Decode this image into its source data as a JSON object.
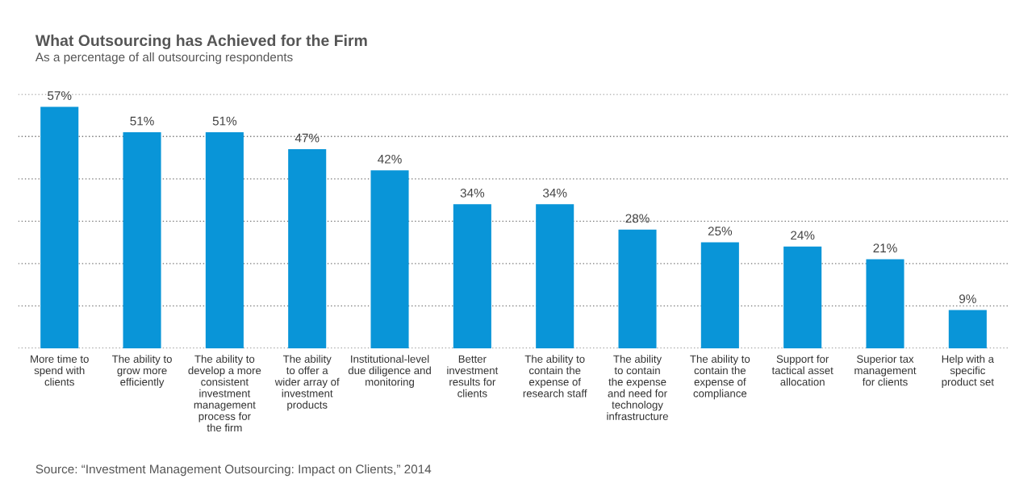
{
  "chart_data": {
    "type": "bar",
    "title": "What Outsourcing has Achieved for the Firm",
    "subtitle": "As a percentage of all outsourcing respondents",
    "categories": [
      "More time to\nspend with\nclients",
      "The ability to\ngrow more\nefficiently",
      "The ability to\ndevelop a more\nconsistent\ninvestment\nmanagement\nprocess for\nthe firm",
      "The ability\nto offer a\nwider array of\ninvestment\nproducts",
      "Institutional-level\ndue diligence and\nmonitoring",
      "Better\ninvestment\nresults for\nclients",
      "The ability to\ncontain the\nexpense of\nresearch staff",
      "The ability\nto contain\nthe expense\nand need for\ntechnology\ninfrastructure",
      "The ability to\ncontain the\nexpense of\ncompliance",
      "Support for\ntactical asset\nallocation",
      "Superior tax\nmanagement\nfor clients",
      "Help with a\nspecific\nproduct set"
    ],
    "values": [
      57,
      51,
      51,
      47,
      42,
      34,
      34,
      28,
      25,
      24,
      21,
      9
    ],
    "value_labels": [
      "57%",
      "51%",
      "51%",
      "47%",
      "42%",
      "34%",
      "34%",
      "28%",
      "25%",
      "24%",
      "21%",
      "9%"
    ],
    "color": "#0995d8",
    "ylim": [
      0,
      60
    ],
    "yticks": [
      {
        "value": 0,
        "label": null
      },
      {
        "value": 10,
        "label": null
      },
      {
        "value": 20,
        "label": null
      },
      {
        "value": 30,
        "label": null
      },
      {
        "value": 40,
        "label": null
      },
      {
        "value": 50,
        "label": null
      },
      {
        "value": 60,
        "label": null
      }
    ],
    "grid": "y",
    "annotations": [
      "Source: “Investment Management Outsourcing: Impact on Clients,” 2014"
    ]
  }
}
